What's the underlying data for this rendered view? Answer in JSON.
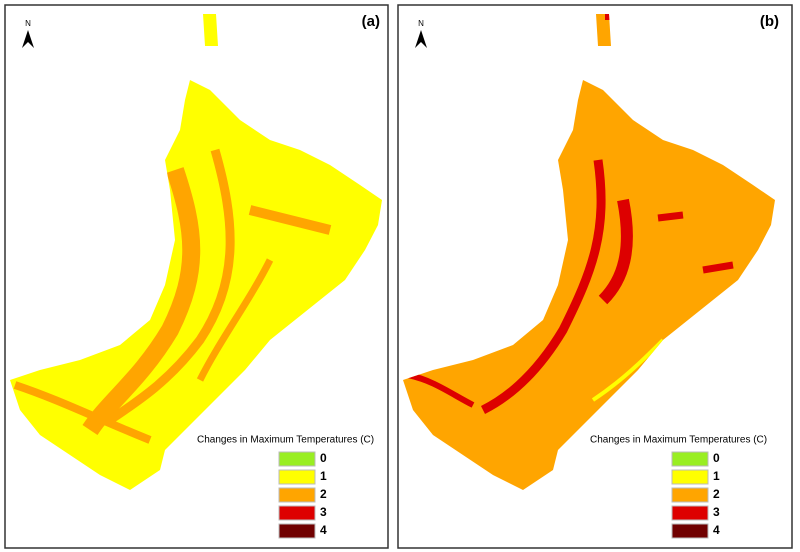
{
  "panels": [
    {
      "label": "(a)",
      "north": "N",
      "legend": {
        "title": "Changes in Maximum Temperatures (C)",
        "items": [
          {
            "label": "0",
            "color": "#99ee22"
          },
          {
            "label": "1",
            "color": "#ffff00"
          },
          {
            "label": "2",
            "color": "#ffa500"
          },
          {
            "label": "3",
            "color": "#dd0000"
          },
          {
            "label": "4",
            "color": "#700000"
          }
        ]
      }
    },
    {
      "label": "(b)",
      "north": "N",
      "legend": {
        "title": "Changes in Maximum Temperatures (C)",
        "items": [
          {
            "label": "0",
            "color": "#99ee22"
          },
          {
            "label": "1",
            "color": "#ffff00"
          },
          {
            "label": "2",
            "color": "#ffa500"
          },
          {
            "label": "3",
            "color": "#dd0000"
          },
          {
            "label": "4",
            "color": "#700000"
          }
        ]
      }
    }
  ]
}
